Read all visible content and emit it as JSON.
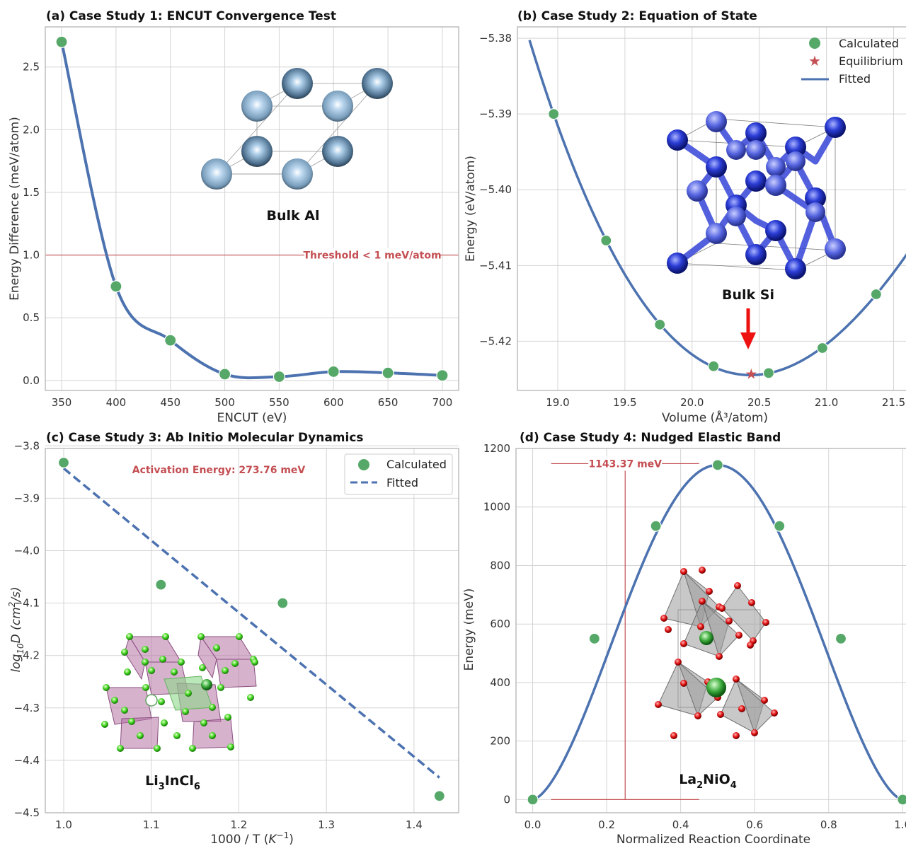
{
  "colors": {
    "line": "#4c72b0",
    "point": "#55a868",
    "accent": "#c44e52",
    "grid": "#d4d4d4"
  },
  "chart_data": [
    {
      "type": "line",
      "title": "(a) Case Study 1: ENCUT Convergence Test",
      "xlabel": "ENCUT (eV)",
      "ylabel": "Energy Difference (meV/atom)",
      "xlim": [
        335,
        715
      ],
      "ylim": [
        -0.08,
        2.82
      ],
      "xticks": [
        350,
        400,
        450,
        500,
        550,
        600,
        650,
        700
      ],
      "xtick_labels": [
        "350",
        "400",
        "450",
        "500",
        "550",
        "600",
        "650",
        "700"
      ],
      "yticks": [
        0,
        0.5,
        1,
        1.5,
        2,
        2.5
      ],
      "ytick_labels": [
        "0.0",
        "0.5",
        "1.0",
        "1.5",
        "2.0",
        "2.5"
      ],
      "x": [
        350,
        400,
        450,
        500,
        550,
        600,
        650,
        700
      ],
      "y": [
        2.7,
        0.75,
        0.32,
        0.05,
        0.03,
        0.07,
        0.06,
        0.04
      ],
      "threshold": {
        "value": 1.0,
        "label": "Threshold < 1 meV/atom"
      },
      "structure_label": "Bulk Al",
      "grid": true
    },
    {
      "type": "line",
      "title": "(b) Case Study 2: Equation of State",
      "xlabel": "Volume (Å³/atom)",
      "ylabel": "Energy (eV/atom)",
      "xlim": [
        18.7,
        21.65
      ],
      "ylim": [
        -5.4265,
        -5.3785
      ],
      "xticks": [
        19.0,
        19.5,
        20.0,
        20.5,
        21.0,
        21.5
      ],
      "xtick_labels": [
        "19.0",
        "19.5",
        "20.0",
        "20.5",
        "21.0",
        "21.5"
      ],
      "yticks": [
        -5.38,
        -5.39,
        -5.4,
        -5.41,
        -5.42
      ],
      "ytick_labels": [
        "−5.38",
        "−5.39",
        "−5.40",
        "−5.41",
        "−5.42"
      ],
      "calculated": {
        "x": [
          18.97,
          19.36,
          19.76,
          20.16,
          20.57,
          20.97,
          21.37
        ],
        "y": [
          -5.39,
          -5.4067,
          -5.4178,
          -5.4233,
          -5.4242,
          -5.4209,
          -5.4138
        ]
      },
      "equilibrium": {
        "x": 20.44,
        "y": -5.4243
      },
      "fitted_range": [
        18.79,
        21.62
      ],
      "legend": [
        "Calculated",
        "Equilibrium",
        "Fitted"
      ],
      "legend_position": "top-right",
      "structure_label": "Bulk Si",
      "grid": true
    },
    {
      "type": "scatter",
      "title": "(c) Case Study 3: Ab Initio Molecular Dynamics",
      "xlabel": "1000 / T (K⁻¹)",
      "ylabel": "log₁₀D (cm²/s)",
      "xlim": [
        0.979,
        1.451
      ],
      "ylim": [
        -4.5,
        -3.805
      ],
      "xticks": [
        1.0,
        1.1,
        1.2,
        1.3,
        1.4
      ],
      "xtick_labels": [
        "1.0",
        "1.1",
        "1.2",
        "1.3",
        "1.4"
      ],
      "yticks": [
        -3.8,
        -3.9,
        -4.0,
        -4.1,
        -4.2,
        -4.3,
        -4.4,
        -4.5
      ],
      "ytick_labels": [
        "−3.8",
        "−3.9",
        "−4.0",
        "−4.1",
        "−4.2",
        "−4.3",
        "−4.4",
        "−4.5"
      ],
      "calculated": {
        "x": [
          1.0,
          1.111,
          1.25,
          1.429
        ],
        "y": [
          -3.832,
          -4.065,
          -4.1,
          -4.468
        ]
      },
      "fitted": {
        "x": [
          1.0,
          1.429
        ],
        "y": [
          -3.843,
          -4.433
        ]
      },
      "legend": [
        "Calculated",
        "Fitted"
      ],
      "legend_position": "top-right",
      "annotation": "Activation Energy: 273.76 meV",
      "structure_label": {
        "main": "Li",
        "sub1": "3",
        "mid": "InCl",
        "sub2": "6"
      },
      "grid": true
    },
    {
      "type": "line",
      "title": "(d) Case Study 4: Nudged Elastic Band",
      "xlabel": "Normalized Reaction Coordinate",
      "ylabel": "Energy (meV)",
      "xlim": [
        -0.045,
        1.03
      ],
      "ylim": [
        -45,
        1200
      ],
      "xticks": [
        0.0,
        0.2,
        0.4,
        0.6,
        0.8,
        1.0
      ],
      "xtick_labels": [
        "0.0",
        "0.2",
        "0.4",
        "0.6",
        "0.8",
        "1.0"
      ],
      "yticks": [
        0,
        200,
        400,
        600,
        800,
        1000,
        1200
      ],
      "ytick_labels": [
        "0",
        "200",
        "400",
        "600",
        "800",
        "1000",
        "1200"
      ],
      "x": [
        0.0,
        0.167,
        0.333,
        0.5,
        0.667,
        0.833,
        1.0
      ],
      "y": [
        0,
        550,
        935,
        1143.37,
        935,
        550,
        0
      ],
      "barrier_label": "1143.37 meV",
      "structure_label": {
        "main": "La",
        "sub1": "2",
        "mid": "NiO",
        "sub2": "4"
      },
      "grid": true
    }
  ]
}
